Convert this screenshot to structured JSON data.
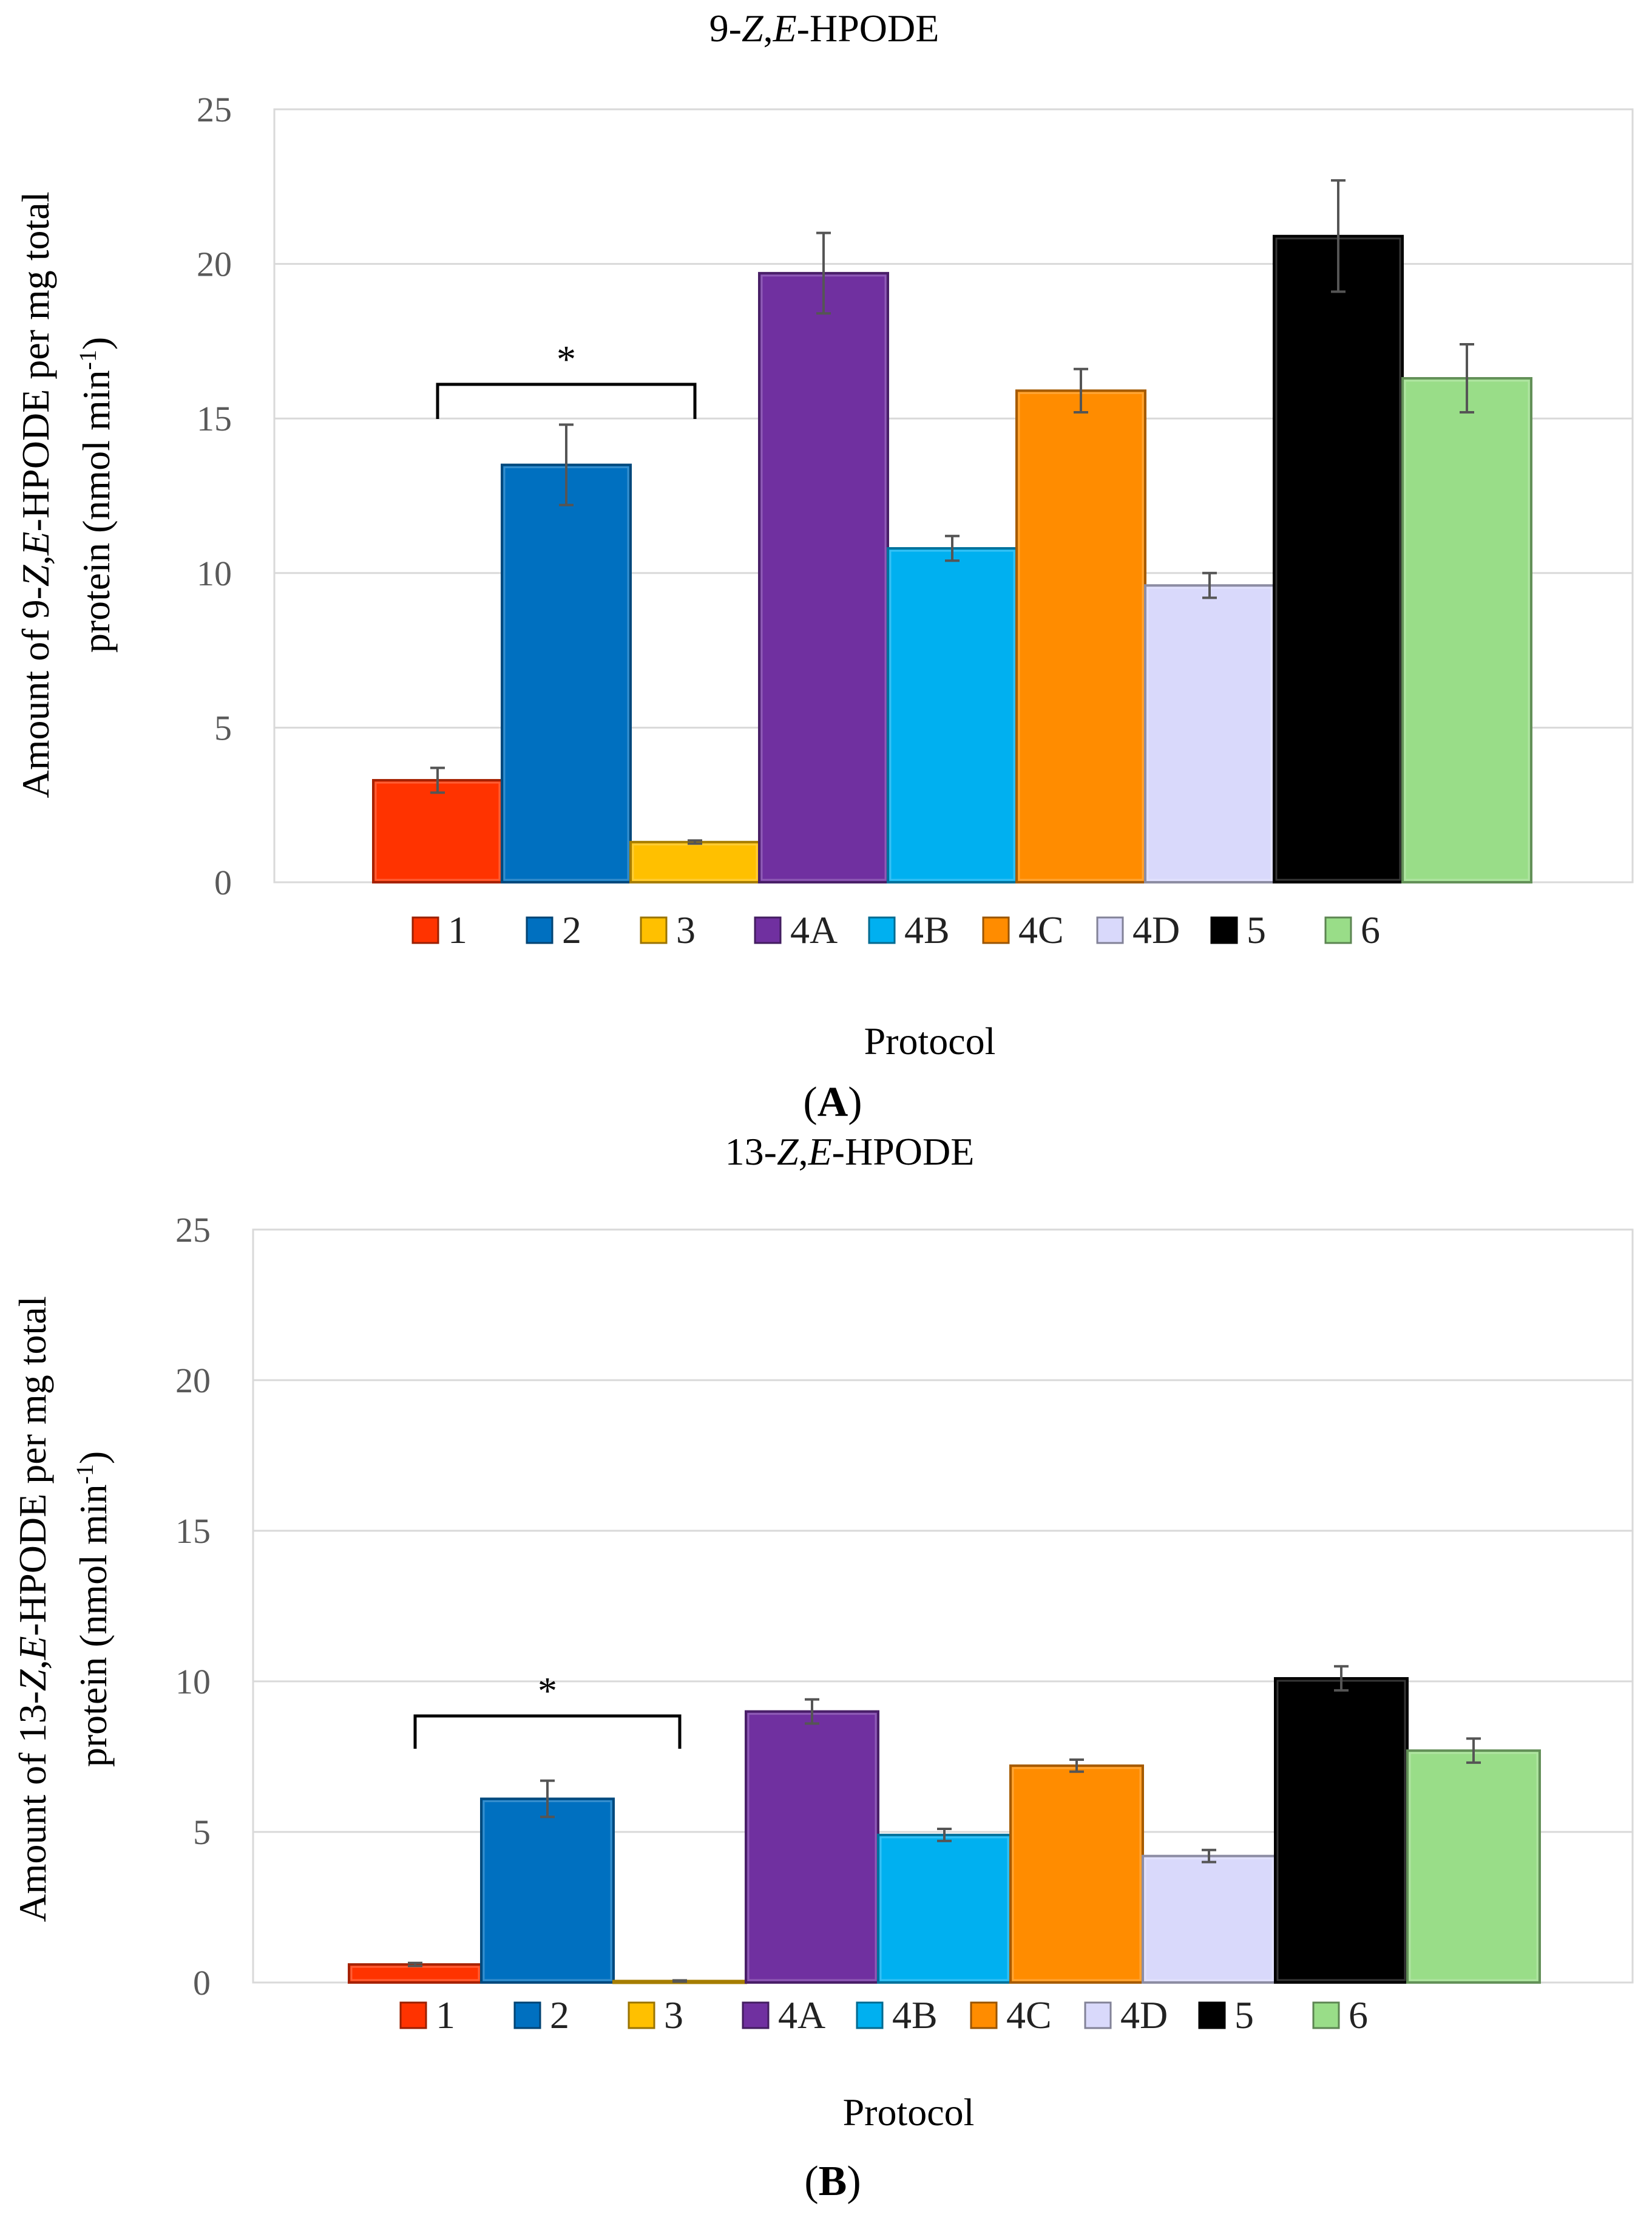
{
  "chart_data": [
    {
      "type": "bar",
      "panel_label": "A",
      "title": "9-Z,E-HPODE",
      "xlabel": "Protocol",
      "ylabel_line1": "Amount of 9-Z,E-HPODE per mg total",
      "ylabel_line2": "protein (nmol min-1)",
      "ylim": [
        0,
        25
      ],
      "yticks": [
        "0",
        "5",
        "10",
        "15",
        "20",
        "25"
      ],
      "grid": true,
      "legend_position": "bottom",
      "categories": [
        "1",
        "2",
        "3",
        "4A",
        "4B",
        "4C",
        "4D",
        "5",
        "6"
      ],
      "values": [
        3.3,
        13.5,
        1.3,
        19.7,
        10.8,
        15.9,
        9.6,
        20.9,
        16.3
      ],
      "errors": [
        0.4,
        1.3,
        0.05,
        1.3,
        0.4,
        0.7,
        0.4,
        1.8,
        1.1
      ],
      "significance": {
        "from": "1",
        "to": "3",
        "label": "*"
      }
    },
    {
      "type": "bar",
      "panel_label": "B",
      "title": "13-Z,E-HPODE",
      "xlabel": "Protocol",
      "ylabel_line1": "Amount of 13-Z,E-HPODE per mg total",
      "ylabel_line2": "protein (nmol min-1)",
      "ylim": [
        0,
        25
      ],
      "yticks": [
        "0",
        "5",
        "10",
        "15",
        "20",
        "25"
      ],
      "grid": true,
      "legend_position": "bottom",
      "categories": [
        "1",
        "2",
        "3",
        "4A",
        "4B",
        "4C",
        "4D",
        "5",
        "6"
      ],
      "values": [
        0.6,
        6.1,
        0.05,
        9.0,
        4.9,
        7.2,
        4.2,
        10.1,
        7.7
      ],
      "errors": [
        0.05,
        0.6,
        0.02,
        0.4,
        0.2,
        0.2,
        0.2,
        0.4,
        0.4
      ],
      "significance": {
        "from": "1",
        "to": "3",
        "label": "*"
      }
    }
  ],
  "colors": [
    "#ff3300",
    "#0070c0",
    "#ffc000",
    "#7030a0",
    "#00b0f0",
    "#ff8c00",
    "#d9d9fb",
    "#000000",
    "#99dd88"
  ]
}
